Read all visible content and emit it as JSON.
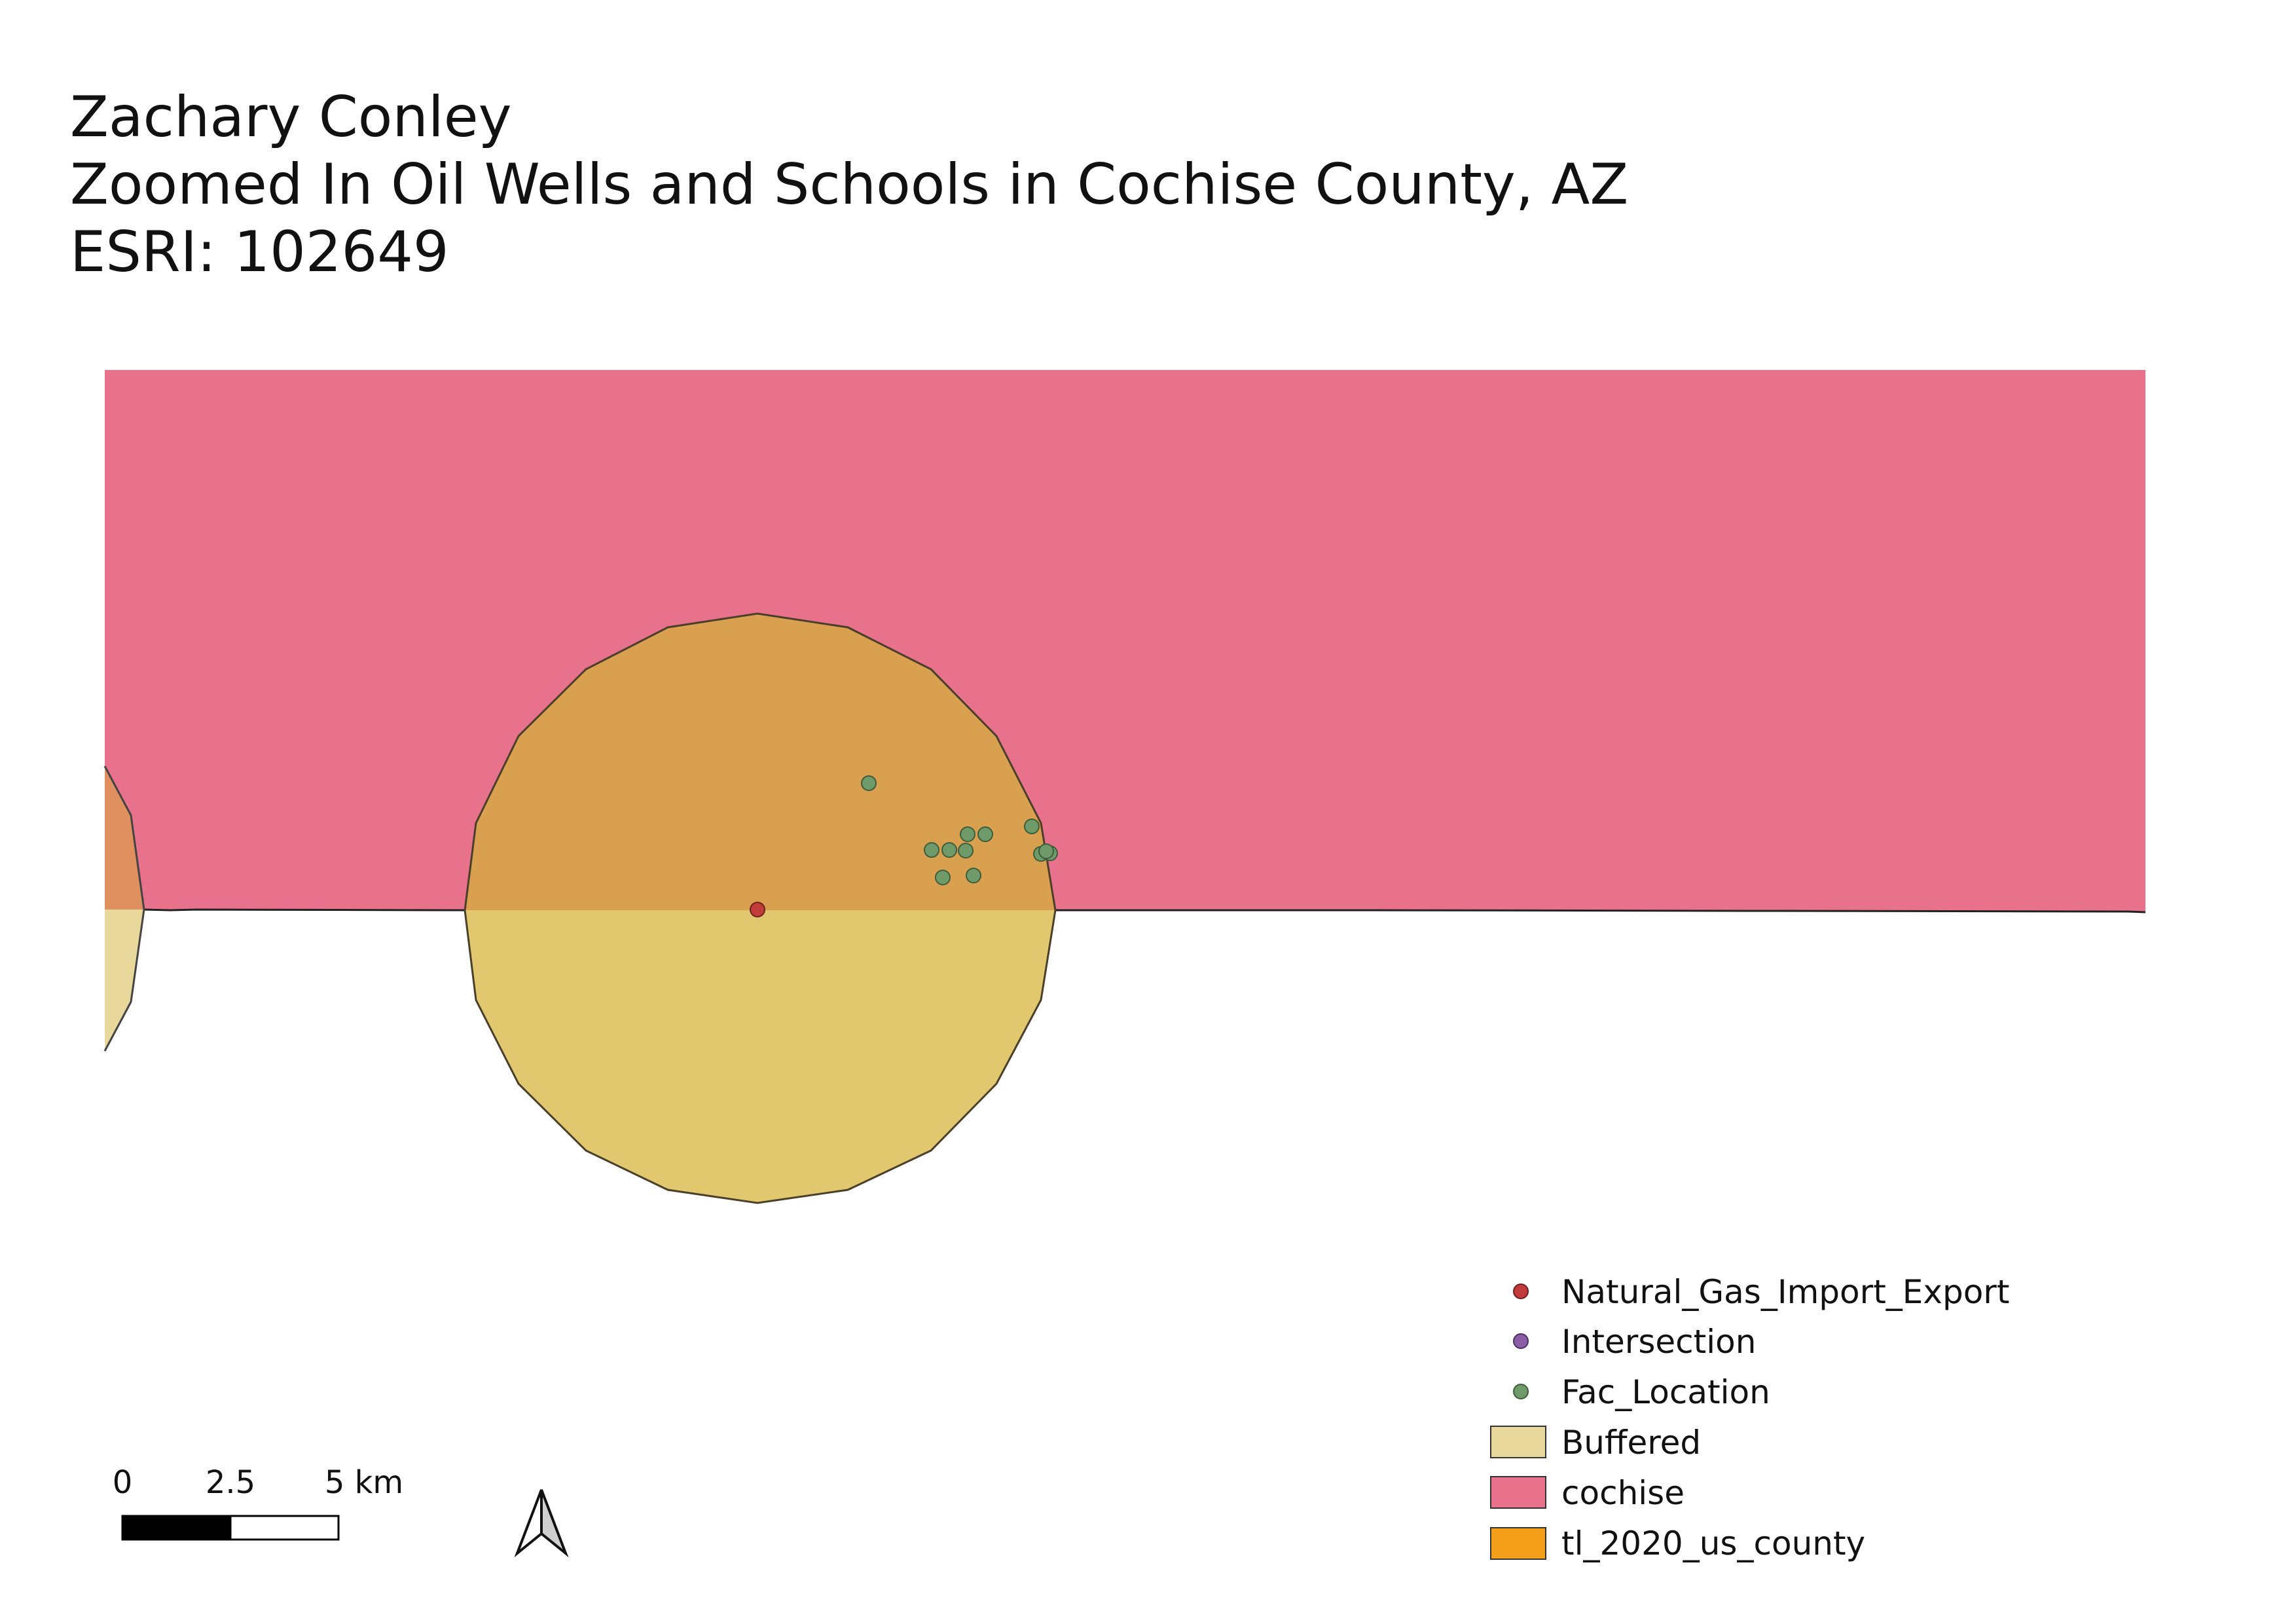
{
  "title": {
    "author": "Zachary Conley",
    "heading": "Zoomed In Oil Wells and Schools in Cochise County, AZ",
    "projection": "ESRI: 102649"
  },
  "colors": {
    "cochise_fill": "#e8718c",
    "buffer_fill": "#e1c86e",
    "buffer_over_county_fill": "#d9a04f",
    "buffer_legend_fill": "#e8d89b",
    "county_legend_fill": "#f5a01a",
    "natural_gas_point": "#c23b3b",
    "intersection_point": "#8b5ba6",
    "facility_point": "#6f9a6a",
    "outline": "#222222"
  },
  "legend": {
    "items": [
      {
        "label": "Natural_Gas_Import_Export",
        "symbol": "point",
        "color": "#c23b3b"
      },
      {
        "label": "Intersection",
        "symbol": "point",
        "color": "#8b5ba6"
      },
      {
        "label": "Fac_Location",
        "symbol": "point",
        "color": "#6f9a6a"
      },
      {
        "label": "Buffered",
        "symbol": "patch",
        "color": "#e8d89b"
      },
      {
        "label": "cochise",
        "symbol": "patch",
        "color": "#e8718c"
      },
      {
        "label": "tl_2020_us_county",
        "symbol": "patch",
        "color": "#f5a01a"
      }
    ]
  },
  "scale_bar": {
    "labels": [
      "0",
      "2.5",
      "5 km"
    ]
  },
  "north_arrow": {
    "icon": "north-arrow-icon"
  },
  "map_layers": {
    "natural_gas_points": 1,
    "facility_points": 12
  }
}
